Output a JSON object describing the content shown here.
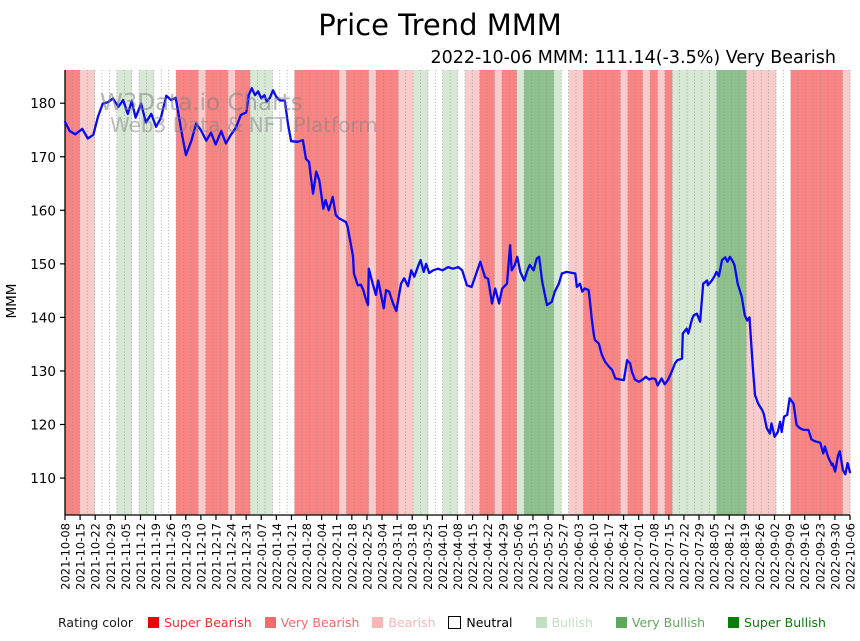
{
  "title": "Price Trend MMM",
  "subtitle": "2022-10-06 MMM: 111.14(-3.5%) Very Bearish",
  "watermark": {
    "line1": "W3Data.io Charts",
    "line2": "Web3 Data & NFT Platform"
  },
  "legend": {
    "caption": "Rating color",
    "items": [
      {
        "label": "Super Bearish",
        "swatch": "#ee0000",
        "text_color": "#f03030",
        "border": "none"
      },
      {
        "label": "Very Bearish",
        "swatch": "#f66a6a",
        "text_color": "#f66a6a",
        "border": "none"
      },
      {
        "label": "Bearish",
        "swatch": "#f8b7b7",
        "text_color": "#f8b7b7",
        "border": "none"
      },
      {
        "label": "Neutral",
        "swatch": "#ffffff",
        "text_color": "#000000",
        "border": "1px solid #000"
      },
      {
        "label": "Bullish",
        "swatch": "#c3dfc3",
        "text_color": "#c3dfc3",
        "border": "none"
      },
      {
        "label": "Very Bullish",
        "swatch": "#5fa95f",
        "text_color": "#5fa95f",
        "border": "none"
      },
      {
        "label": "Super Bullish",
        "swatch": "#0a7c0a",
        "text_color": "#0a7c0a",
        "border": "none"
      }
    ]
  },
  "chart_data": {
    "type": "line",
    "title": "Price Trend MMM",
    "subtitle": "2022-10-06 MMM: 111.14(-3.5%) Very Bearish",
    "ylabel": "MMM",
    "ylim": [
      103.1,
      186.2
    ],
    "yticks": [
      110,
      120,
      130,
      140,
      150,
      160,
      170,
      180
    ],
    "grid": "vertical dotted gridlines only",
    "legend_position": "bottom",
    "line_color": "#0a0af0",
    "x_tick_labels": [
      "2021-10-08",
      "2021-10-15",
      "2021-10-22",
      "2021-10-29",
      "2021-11-05",
      "2021-11-12",
      "2021-11-19",
      "2021-11-26",
      "2021-12-03",
      "2021-12-10",
      "2021-12-17",
      "2021-12-24",
      "2021-12-31",
      "2022-01-07",
      "2022-01-14",
      "2022-01-21",
      "2022-01-28",
      "2022-02-04",
      "2022-02-11",
      "2022-02-18",
      "2022-02-25",
      "2022-03-04",
      "2022-03-11",
      "2022-03-18",
      "2022-03-25",
      "2022-04-01",
      "2022-04-08",
      "2022-04-15",
      "2022-04-22",
      "2022-04-29",
      "2022-05-06",
      "2022-05-13",
      "2022-05-20",
      "2022-05-27",
      "2022-06-03",
      "2022-06-10",
      "2022-06-17",
      "2022-06-24",
      "2022-07-01",
      "2022-07-08",
      "2022-07-15",
      "2022-07-22",
      "2022-07-29",
      "2022-08-05",
      "2022-08-12",
      "2022-08-19",
      "2022-08-26",
      "2022-09-02",
      "2022-09-09",
      "2022-09-16",
      "2022-09-23",
      "2022-09-30",
      "2022-10-06"
    ],
    "rating_scale": {
      "0": "Neutral",
      "1": "Bearish",
      "2": "Very Bearish",
      "3": "Super Bearish",
      "4": "Bullish",
      "5": "Very Bullish",
      "6": "Super Bullish"
    },
    "rating_band_colors": {
      "0": "none",
      "1": "#f9cccc",
      "2": "#f88484",
      "3": "#ee2222",
      "4": "#d7e8d4",
      "5": "#8dc08d",
      "6": "#0e7e0e"
    },
    "rating_bands": "2211000440440002221222122444000222222122212221144004401122122455554011222221221212444444555511110022222221",
    "series": [
      {
        "name": "MMM",
        "x_axis": "fraction of span 2021-10-08 to 2022-10-06",
        "points": [
          [
            0.0,
            176.5
          ],
          [
            0.006,
            174.8
          ],
          [
            0.013,
            174.2
          ],
          [
            0.022,
            175.2
          ],
          [
            0.029,
            173.4
          ],
          [
            0.036,
            174.1
          ],
          [
            0.042,
            177.5
          ],
          [
            0.048,
            179.9
          ],
          [
            0.055,
            180.2
          ],
          [
            0.061,
            180.9
          ],
          [
            0.068,
            179.3
          ],
          [
            0.074,
            180.6
          ],
          [
            0.08,
            178.0
          ],
          [
            0.085,
            180.4
          ],
          [
            0.09,
            177.3
          ],
          [
            0.097,
            179.9
          ],
          [
            0.103,
            176.4
          ],
          [
            0.11,
            178.0
          ],
          [
            0.116,
            175.6
          ],
          [
            0.122,
            177.2
          ],
          [
            0.129,
            181.4
          ],
          [
            0.135,
            180.6
          ],
          [
            0.141,
            181.0
          ],
          [
            0.148,
            175.0
          ],
          [
            0.154,
            170.3
          ],
          [
            0.161,
            173.0
          ],
          [
            0.167,
            176.2
          ],
          [
            0.173,
            175.0
          ],
          [
            0.18,
            173.0
          ],
          [
            0.186,
            174.5
          ],
          [
            0.192,
            172.3
          ],
          [
            0.199,
            174.8
          ],
          [
            0.205,
            172.5
          ],
          [
            0.211,
            174.0
          ],
          [
            0.218,
            175.5
          ],
          [
            0.224,
            177.8
          ],
          [
            0.231,
            178.3
          ],
          [
            0.234,
            181.5
          ],
          [
            0.238,
            182.8
          ],
          [
            0.242,
            181.5
          ],
          [
            0.246,
            182.2
          ],
          [
            0.25,
            180.9
          ],
          [
            0.254,
            181.5
          ],
          [
            0.257,
            180.3
          ],
          [
            0.261,
            181.0
          ],
          [
            0.265,
            182.4
          ],
          [
            0.269,
            181.2
          ],
          [
            0.274,
            180.5
          ],
          [
            0.28,
            180.5
          ],
          [
            0.284,
            176.2
          ],
          [
            0.288,
            172.9
          ],
          [
            0.296,
            172.8
          ],
          [
            0.303,
            173.1
          ],
          [
            0.307,
            169.6
          ],
          [
            0.311,
            169.0
          ],
          [
            0.313,
            166.5
          ],
          [
            0.316,
            163.1
          ],
          [
            0.32,
            167.2
          ],
          [
            0.324,
            165.6
          ],
          [
            0.329,
            160.3
          ],
          [
            0.332,
            161.9
          ],
          [
            0.336,
            160.0
          ],
          [
            0.341,
            162.5
          ],
          [
            0.345,
            159.1
          ],
          [
            0.349,
            158.5
          ],
          [
            0.358,
            157.8
          ],
          [
            0.36,
            156.9
          ],
          [
            0.364,
            153.8
          ],
          [
            0.367,
            151.3
          ],
          [
            0.368,
            148.2
          ],
          [
            0.373,
            146.0
          ],
          [
            0.377,
            146.1
          ],
          [
            0.38,
            145.1
          ],
          [
            0.383,
            143.5
          ],
          [
            0.386,
            142.3
          ],
          [
            0.387,
            149.1
          ],
          [
            0.392,
            146.3
          ],
          [
            0.396,
            144.2
          ],
          [
            0.399,
            146.9
          ],
          [
            0.403,
            143.9
          ],
          [
            0.406,
            141.7
          ],
          [
            0.409,
            145.1
          ],
          [
            0.413,
            144.8
          ],
          [
            0.418,
            142.6
          ],
          [
            0.422,
            141.2
          ],
          [
            0.428,
            146.3
          ],
          [
            0.432,
            147.3
          ],
          [
            0.437,
            145.8
          ],
          [
            0.441,
            148.8
          ],
          [
            0.445,
            147.6
          ],
          [
            0.45,
            149.7
          ],
          [
            0.453,
            150.7
          ],
          [
            0.457,
            148.5
          ],
          [
            0.46,
            150.0
          ],
          [
            0.464,
            148.3
          ],
          [
            0.469,
            148.8
          ],
          [
            0.475,
            149.1
          ],
          [
            0.481,
            148.8
          ],
          [
            0.488,
            149.4
          ],
          [
            0.494,
            149.1
          ],
          [
            0.501,
            149.4
          ],
          [
            0.506,
            148.8
          ],
          [
            0.512,
            146.0
          ],
          [
            0.518,
            145.7
          ],
          [
            0.529,
            150.4
          ],
          [
            0.535,
            147.5
          ],
          [
            0.539,
            147.2
          ],
          [
            0.544,
            142.6
          ],
          [
            0.548,
            145.4
          ],
          [
            0.553,
            142.6
          ],
          [
            0.557,
            145.4
          ],
          [
            0.563,
            146.3
          ],
          [
            0.567,
            153.5
          ],
          [
            0.569,
            148.8
          ],
          [
            0.573,
            149.8
          ],
          [
            0.576,
            151.3
          ],
          [
            0.58,
            148.5
          ],
          [
            0.585,
            146.9
          ],
          [
            0.589,
            148.8
          ],
          [
            0.592,
            149.8
          ],
          [
            0.597,
            148.8
          ],
          [
            0.601,
            151.0
          ],
          [
            0.604,
            151.3
          ],
          [
            0.608,
            146.6
          ],
          [
            0.614,
            142.3
          ],
          [
            0.62,
            142.9
          ],
          [
            0.624,
            144.8
          ],
          [
            0.629,
            146.3
          ],
          [
            0.633,
            148.2
          ],
          [
            0.639,
            148.5
          ],
          [
            0.65,
            148.2
          ],
          [
            0.652,
            145.7
          ],
          [
            0.656,
            146.3
          ],
          [
            0.659,
            144.8
          ],
          [
            0.662,
            145.4
          ],
          [
            0.667,
            145.1
          ],
          [
            0.669,
            142.6
          ],
          [
            0.671,
            139.8
          ],
          [
            0.674,
            136.4
          ],
          [
            0.675,
            135.8
          ],
          [
            0.68,
            135.1
          ],
          [
            0.684,
            133.0
          ],
          [
            0.688,
            131.7
          ],
          [
            0.693,
            130.8
          ],
          [
            0.697,
            130.2
          ],
          [
            0.701,
            128.6
          ],
          [
            0.707,
            128.4
          ],
          [
            0.712,
            128.3
          ],
          [
            0.716,
            132.0
          ],
          [
            0.72,
            131.4
          ],
          [
            0.722,
            129.9
          ],
          [
            0.726,
            128.4
          ],
          [
            0.731,
            128.0
          ],
          [
            0.735,
            128.3
          ],
          [
            0.74,
            128.9
          ],
          [
            0.744,
            128.4
          ],
          [
            0.748,
            128.6
          ],
          [
            0.752,
            128.5
          ],
          [
            0.755,
            127.3
          ],
          [
            0.76,
            128.6
          ],
          [
            0.764,
            127.5
          ],
          [
            0.768,
            128.3
          ],
          [
            0.773,
            129.9
          ],
          [
            0.777,
            131.4
          ],
          [
            0.78,
            132.0
          ],
          [
            0.786,
            132.3
          ],
          [
            0.787,
            137.0
          ],
          [
            0.792,
            137.9
          ],
          [
            0.794,
            137.0
          ],
          [
            0.799,
            139.8
          ],
          [
            0.801,
            140.4
          ],
          [
            0.805,
            140.7
          ],
          [
            0.809,
            139.2
          ],
          [
            0.813,
            146.3
          ],
          [
            0.818,
            146.9
          ],
          [
            0.819,
            146.0
          ],
          [
            0.824,
            146.9
          ],
          [
            0.827,
            147.6
          ],
          [
            0.83,
            148.5
          ],
          [
            0.833,
            147.7
          ],
          [
            0.837,
            150.7
          ],
          [
            0.841,
            151.2
          ],
          [
            0.844,
            150.4
          ],
          [
            0.847,
            151.3
          ],
          [
            0.851,
            150.4
          ],
          [
            0.853,
            149.7
          ],
          [
            0.857,
            146.3
          ],
          [
            0.862,
            143.9
          ],
          [
            0.866,
            140.4
          ],
          [
            0.869,
            139.4
          ],
          [
            0.872,
            140.0
          ],
          [
            0.876,
            131.0
          ],
          [
            0.879,
            125.5
          ],
          [
            0.883,
            123.9
          ],
          [
            0.888,
            122.7
          ],
          [
            0.89,
            122.1
          ],
          [
            0.894,
            119.3
          ],
          [
            0.898,
            118.3
          ],
          [
            0.9,
            120.2
          ],
          [
            0.904,
            117.7
          ],
          [
            0.908,
            118.6
          ],
          [
            0.911,
            120.5
          ],
          [
            0.913,
            118.6
          ],
          [
            0.916,
            121.5
          ],
          [
            0.92,
            121.8
          ],
          [
            0.923,
            124.9
          ],
          [
            0.928,
            123.9
          ],
          [
            0.932,
            119.9
          ],
          [
            0.936,
            119.3
          ],
          [
            0.941,
            119.0
          ],
          [
            0.947,
            119.0
          ],
          [
            0.951,
            117.2
          ],
          [
            0.955,
            116.9
          ],
          [
            0.962,
            116.6
          ],
          [
            0.966,
            114.6
          ],
          [
            0.968,
            115.9
          ],
          [
            0.972,
            114.0
          ],
          [
            0.977,
            112.4
          ],
          [
            0.978,
            112.7
          ],
          [
            0.981,
            111.2
          ],
          [
            0.985,
            114.3
          ],
          [
            0.987,
            115.0
          ],
          [
            0.991,
            111.5
          ],
          [
            0.994,
            110.7
          ],
          [
            0.997,
            112.8
          ],
          [
            1.0,
            111.1
          ]
        ]
      }
    ]
  }
}
